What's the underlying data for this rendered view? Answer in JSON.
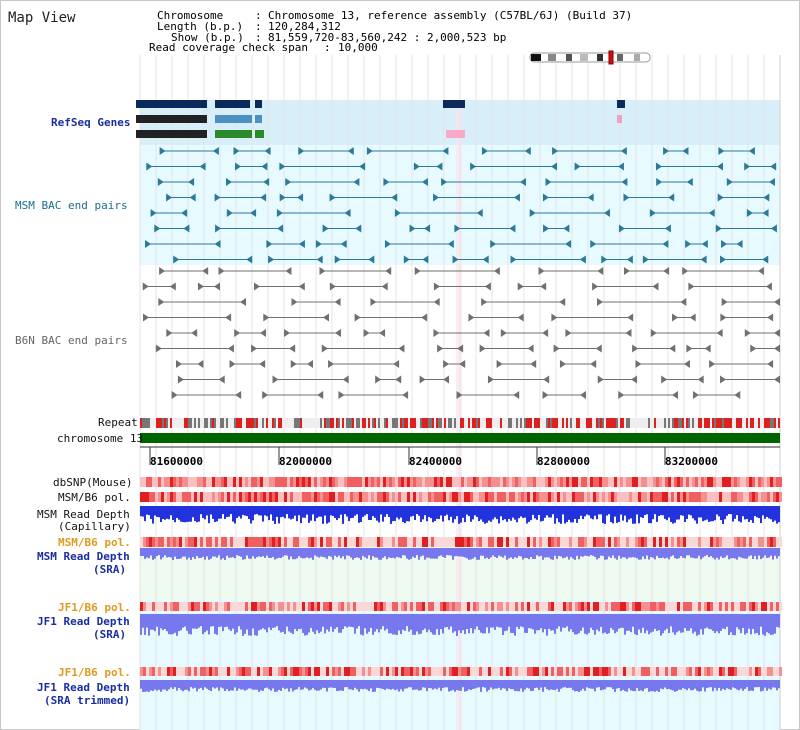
{
  "header": {
    "title": "Map View",
    "chromosome_label": "Chromosome",
    "chromosome_value": "Chromosome 13, reference assembly (C57BL/6J) (Build 37)",
    "length_label": "Length (b.p.)",
    "length_value": "120,284,312",
    "show_label": "Show (b.p.)",
    "show_value": "81,559,720-83,560,242 : 2,000,523 bp",
    "coverage_label": "Read coverage check span",
    "coverage_value": "10,000"
  },
  "tracks": {
    "refseq": "RefSeq Genes",
    "msm_bac": "MSM BAC end pairs",
    "b6n_bac": "B6N BAC end pairs",
    "repeat": "Repeat",
    "chromosome": "chromosome 13",
    "dbsnp": "dbSNP(Mouse)",
    "msm_b6_pol": "MSM/B6 pol.",
    "msm_read_depth_cap_1": "MSM Read Depth",
    "msm_read_depth_cap_2": "(Capillary)",
    "msm_b6_pol_2": "MSM/B6 pol.",
    "msm_read_depth_sra_1": "MSM Read Depth",
    "msm_read_depth_sra_2": "(SRA)",
    "jf1_b6_pol": "JF1/B6 pol.",
    "jf1_read_depth_sra_1": "JF1 Read Depth",
    "jf1_read_depth_sra_2": "(SRA)",
    "jf1_b6_pol_2": "JF1/B6 pol.",
    "jf1_read_depth_trim_1": "JF1 Read Depth",
    "jf1_read_depth_trim_2": "(SRA trimmed)"
  },
  "axis": {
    "ticks": [
      "81600000",
      "82000000",
      "82400000",
      "82800000",
      "83200000"
    ]
  },
  "colors": {
    "refseq_dark": "#0a2a5a",
    "refseq_mid": "#4a90c0",
    "refseq_green": "#2a8a2a",
    "msm_bac": "#2a7a9a",
    "b6n_bac": "#707070",
    "repeat_red": "#dd2020",
    "chromosome_green": "#006400",
    "pol_red": "#ee4444",
    "depth_blue": "#2233dd",
    "depth_lightblue": "#7777ee",
    "highlight_pink": "#f8a8c8"
  }
}
